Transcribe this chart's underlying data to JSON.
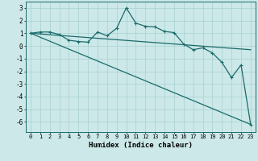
{
  "xlabel": "Humidex (Indice chaleur)",
  "ylabel": "",
  "bg_color": "#cce8e8",
  "line_color": "#1a6b6b",
  "grid_color": "#a8d0d0",
  "xlim": [
    -0.5,
    23.5
  ],
  "ylim": [
    -6.8,
    3.5
  ],
  "xticks": [
    0,
    1,
    2,
    3,
    4,
    5,
    6,
    7,
    8,
    9,
    10,
    11,
    12,
    13,
    14,
    15,
    16,
    17,
    18,
    19,
    20,
    21,
    22,
    23
  ],
  "yticks": [
    -6,
    -5,
    -4,
    -3,
    -2,
    -1,
    0,
    1,
    2,
    3
  ],
  "line1_x": [
    0,
    1,
    2,
    3,
    4,
    5,
    6,
    7,
    8,
    9,
    10,
    11,
    12,
    13,
    14,
    15,
    16,
    17,
    18,
    19,
    20,
    21,
    22,
    23
  ],
  "line1_y": [
    1.0,
    1.1,
    1.1,
    0.9,
    0.45,
    0.35,
    0.3,
    1.1,
    0.8,
    1.4,
    3.0,
    1.8,
    1.55,
    1.5,
    1.15,
    1.05,
    0.15,
    -0.3,
    -0.15,
    -0.55,
    -1.3,
    -2.5,
    -1.5,
    -6.2
  ],
  "line2_x": [
    0,
    23
  ],
  "line2_y": [
    1.0,
    -0.3
  ],
  "line3_x": [
    0,
    23
  ],
  "line3_y": [
    1.0,
    -6.2
  ]
}
